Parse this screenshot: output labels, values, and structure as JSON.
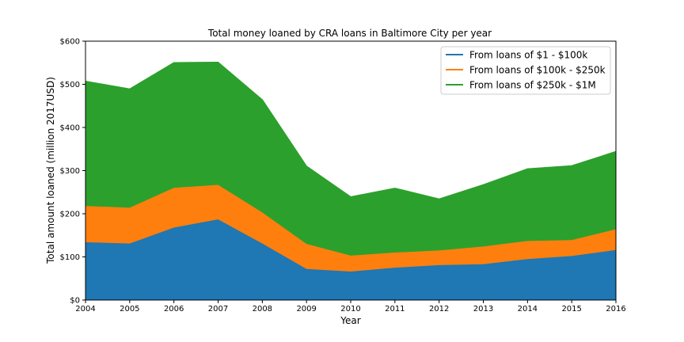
{
  "chart_data": {
    "type": "area",
    "stacked": true,
    "title": "Total money loaned by CRA loans in Baltimore City per year",
    "xlabel": "Year",
    "ylabel": "Total amount loaned (million 2017USD)",
    "x": [
      2004,
      2005,
      2006,
      2007,
      2008,
      2009,
      2010,
      2011,
      2012,
      2013,
      2014,
      2015,
      2016
    ],
    "xlim": [
      2004,
      2016
    ],
    "ylim": [
      0,
      600
    ],
    "y_ticks": [
      0,
      100,
      200,
      300,
      400,
      500,
      600
    ],
    "y_tick_labels": [
      "$0",
      "$100",
      "$200",
      "$300",
      "$400",
      "$500",
      "$600"
    ],
    "x_tick_labels": [
      "2004",
      "2005",
      "2006",
      "2007",
      "2008",
      "2009",
      "2010",
      "2011",
      "2012",
      "2013",
      "2014",
      "2015",
      "2016"
    ],
    "grid": false,
    "legend_position": "top-right",
    "series": [
      {
        "name": "From loans of $1 - $100k",
        "color": "#1f77b4",
        "values": [
          134,
          131,
          168,
          187,
          131,
          72,
          66,
          75,
          81,
          83,
          95,
          102,
          116
        ]
      },
      {
        "name": "From loans of $100k - $250k",
        "color": "#ff7f0e",
        "values": [
          84,
          83,
          92,
          80,
          72,
          58,
          37,
          35,
          34,
          41,
          42,
          37,
          48
        ]
      },
      {
        "name": "From loans of $250k - $1M",
        "color": "#2ca02c",
        "values": [
          289,
          275,
          290,
          284,
          261,
          180,
          136,
          149,
          119,
          143,
          167,
          172,
          180
        ]
      }
    ]
  }
}
